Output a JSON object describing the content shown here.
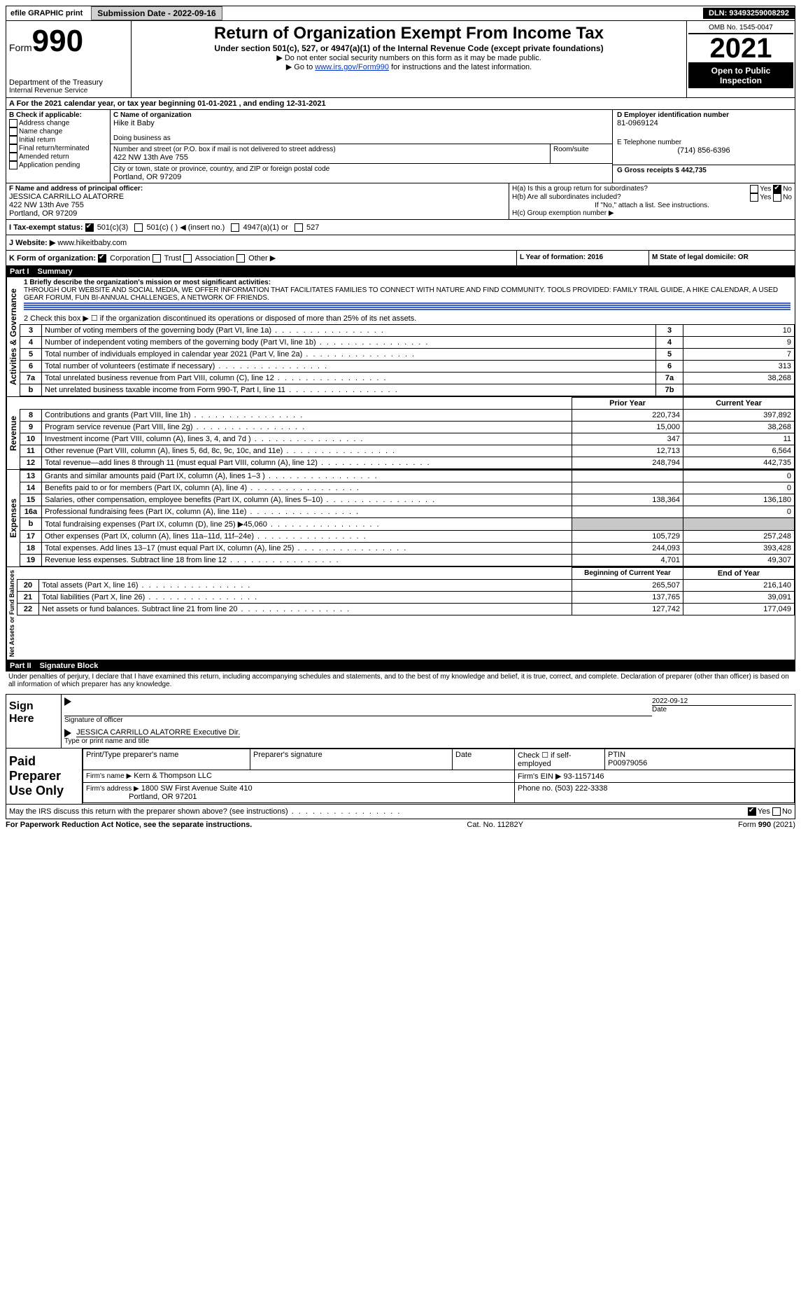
{
  "topbar": {
    "efile": "efile GRAPHIC print",
    "submission_label": "Submission Date - 2022-09-16",
    "dln_label": "DLN: 93493259008292"
  },
  "header": {
    "form_prefix": "Form",
    "form_number": "990",
    "dept1": "Department of the Treasury",
    "dept2": "Internal Revenue Service",
    "title": "Return of Organization Exempt From Income Tax",
    "subtitle": "Under section 501(c), 527, or 4947(a)(1) of the Internal Revenue Code (except private foundations)",
    "note1": "▶ Do not enter social security numbers on this form as it may be made public.",
    "note2_pre": "▶ Go to ",
    "note2_link": "www.irs.gov/Form990",
    "note2_post": " for instructions and the latest information.",
    "omb": "OMB No. 1545-0047",
    "year": "2021",
    "inspection": "Open to Public Inspection"
  },
  "period": {
    "line": "A For the 2021 calendar year, or tax year beginning 01-01-2021   , and ending 12-31-2021"
  },
  "boxB": {
    "title": "B Check if applicable:",
    "opts": [
      "Address change",
      "Name change",
      "Initial return",
      "Final return/terminated",
      "Amended return",
      "Application pending"
    ]
  },
  "boxC": {
    "label_name": "C Name of organization",
    "org_name": "Hike it Baby",
    "dba_label": "Doing business as",
    "addr_label": "Number and street (or P.O. box if mail is not delivered to street address)",
    "room_label": "Room/suite",
    "addr": "422 NW 13th Ave 755",
    "city_label": "City or town, state or province, country, and ZIP or foreign postal code",
    "city": "Portland, OR  97209"
  },
  "boxD": {
    "label": "D Employer identification number",
    "value": "81-0969124"
  },
  "boxE": {
    "label": "E Telephone number",
    "value": "(714) 856-6396"
  },
  "boxG": {
    "label": "G Gross receipts $ 442,735"
  },
  "boxF": {
    "label": "F  Name and address of principal officer:",
    "name": "JESSICA CARRILLO ALATORRE",
    "addr1": "422 NW 13th Ave 755",
    "addr2": "Portland, OR  97209"
  },
  "boxH": {
    "a": "H(a)  Is this a group return for subordinates?",
    "b": "H(b)  Are all subordinates included?",
    "note": "If \"No,\" attach a list. See instructions.",
    "c": "H(c)  Group exemption number ▶",
    "yes": "Yes",
    "no": "No"
  },
  "boxI": {
    "label": "I   Tax-exempt status:",
    "o1": "501(c)(3)",
    "o2": "501(c) (  ) ◀ (insert no.)",
    "o3": "4947(a)(1) or",
    "o4": "527"
  },
  "boxJ": {
    "label": "J   Website: ▶",
    "value": "www.hikeitbaby.com"
  },
  "boxK": {
    "label": "K Form of organization:",
    "o1": "Corporation",
    "o2": "Trust",
    "o3": "Association",
    "o4": "Other ▶"
  },
  "boxL": {
    "label": "L Year of formation: 2016"
  },
  "boxM": {
    "label": "M State of legal domicile: OR"
  },
  "part1": {
    "title": "Part I",
    "name": "Summary"
  },
  "summary": {
    "q1_label": "1  Briefly describe the organization's mission or most significant activities:",
    "q1_text": "THROUGH OUR WEBSITE AND SOCIAL MEDIA, WE OFFER INFORMATION THAT FACILITATES FAMILIES TO CONNECT WITH NATURE AND FIND COMMUNITY. TOOLS PROVIDED: FAMILY TRAIL GUIDE, A HIKE CALENDAR, A USED GEAR FORUM, FUN BI-ANNUAL CHALLENGES, A NETWORK OF FRIENDS.",
    "q2": "2   Check this box ▶ ☐  if the organization discontinued its operations or disposed of more than 25% of its net assets.",
    "rows_ag": [
      {
        "n": "3",
        "t": "Number of voting members of the governing body (Part VI, line 1a)",
        "c": "3",
        "v": "10"
      },
      {
        "n": "4",
        "t": "Number of independent voting members of the governing body (Part VI, line 1b)",
        "c": "4",
        "v": "9"
      },
      {
        "n": "5",
        "t": "Total number of individuals employed in calendar year 2021 (Part V, line 2a)",
        "c": "5",
        "v": "7"
      },
      {
        "n": "6",
        "t": "Total number of volunteers (estimate if necessary)",
        "c": "6",
        "v": "313"
      },
      {
        "n": "7a",
        "t": "Total unrelated business revenue from Part VIII, column (C), line 12",
        "c": "7a",
        "v": "38,268"
      },
      {
        "n": "b",
        "t": "Net unrelated business taxable income from Form 990-T, Part I, line 11",
        "c": "7b",
        "v": ""
      }
    ],
    "col_prior": "Prior Year",
    "col_current": "Current Year",
    "revenue": [
      {
        "n": "8",
        "t": "Contributions and grants (Part VIII, line 1h)",
        "p": "220,734",
        "c": "397,892"
      },
      {
        "n": "9",
        "t": "Program service revenue (Part VIII, line 2g)",
        "p": "15,000",
        "c": "38,268"
      },
      {
        "n": "10",
        "t": "Investment income (Part VIII, column (A), lines 3, 4, and 7d )",
        "p": "347",
        "c": "11"
      },
      {
        "n": "11",
        "t": "Other revenue (Part VIII, column (A), lines 5, 6d, 8c, 9c, 10c, and 11e)",
        "p": "12,713",
        "c": "6,564"
      },
      {
        "n": "12",
        "t": "Total revenue—add lines 8 through 11 (must equal Part VIII, column (A), line 12)",
        "p": "248,794",
        "c": "442,735"
      }
    ],
    "expenses": [
      {
        "n": "13",
        "t": "Grants and similar amounts paid (Part IX, column (A), lines 1–3 )",
        "p": "",
        "c": "0"
      },
      {
        "n": "14",
        "t": "Benefits paid to or for members (Part IX, column (A), line 4)",
        "p": "",
        "c": "0"
      },
      {
        "n": "15",
        "t": "Salaries, other compensation, employee benefits (Part IX, column (A), lines 5–10)",
        "p": "138,364",
        "c": "136,180"
      },
      {
        "n": "16a",
        "t": "Professional fundraising fees (Part IX, column (A), line 11e)",
        "p": "",
        "c": "0"
      },
      {
        "n": "b",
        "t": "Total fundraising expenses (Part IX, column (D), line 25) ▶45,060",
        "p": "shade",
        "c": "shade"
      },
      {
        "n": "17",
        "t": "Other expenses (Part IX, column (A), lines 11a–11d, 11f–24e)",
        "p": "105,729",
        "c": "257,248"
      },
      {
        "n": "18",
        "t": "Total expenses. Add lines 13–17 (must equal Part IX, column (A), line 25)",
        "p": "244,093",
        "c": "393,428"
      },
      {
        "n": "19",
        "t": "Revenue less expenses. Subtract line 18 from line 12",
        "p": "4,701",
        "c": "49,307"
      }
    ],
    "col_begin": "Beginning of Current Year",
    "col_end": "End of Year",
    "netassets": [
      {
        "n": "20",
        "t": "Total assets (Part X, line 16)",
        "p": "265,507",
        "c": "216,140"
      },
      {
        "n": "21",
        "t": "Total liabilities (Part X, line 26)",
        "p": "137,765",
        "c": "39,091"
      },
      {
        "n": "22",
        "t": "Net assets or fund balances. Subtract line 21 from line 20",
        "p": "127,742",
        "c": "177,049"
      }
    ],
    "vlabels": {
      "ag": "Activities & Governance",
      "rev": "Revenue",
      "exp": "Expenses",
      "na": "Net Assets or Fund Balances"
    }
  },
  "part2": {
    "title": "Part II",
    "name": "Signature Block",
    "decl": "Under penalties of perjury, I declare that I have examined this return, including accompanying schedules and statements, and to the best of my knowledge and belief, it is true, correct, and complete. Declaration of preparer (other than officer) is based on all information of which preparer has any knowledge."
  },
  "sign": {
    "here": "Sign Here",
    "sig_officer": "Signature of officer",
    "date_lbl": "Date",
    "date": "2022-09-12",
    "name": "JESSICA CARRILLO ALATORRE  Executive Dir.",
    "type_lbl": "Type or print name and title"
  },
  "preparer": {
    "title": "Paid Preparer Use Only",
    "h1": "Print/Type preparer's name",
    "h2": "Preparer's signature",
    "h3": "Date",
    "h4": "Check ☐ if self-employed",
    "h5": "PTIN",
    "ptin": "P00979056",
    "firm_lbl": "Firm's name   ▶",
    "firm": "Kern & Thompson LLC",
    "ein_lbl": "Firm's EIN ▶ 93-1157146",
    "addr_lbl": "Firm's address ▶",
    "addr1": "1800 SW First Avenue Suite 410",
    "addr2": "Portland, OR  97201",
    "phone_lbl": "Phone no. (503) 222-3338",
    "discuss": "May the IRS discuss this return with the preparer shown above? (see instructions)",
    "yes": "Yes",
    "no": "No"
  },
  "footer": {
    "left": "For Paperwork Reduction Act Notice, see the separate instructions.",
    "mid": "Cat. No. 11282Y",
    "right": "Form 990 (2021)"
  }
}
